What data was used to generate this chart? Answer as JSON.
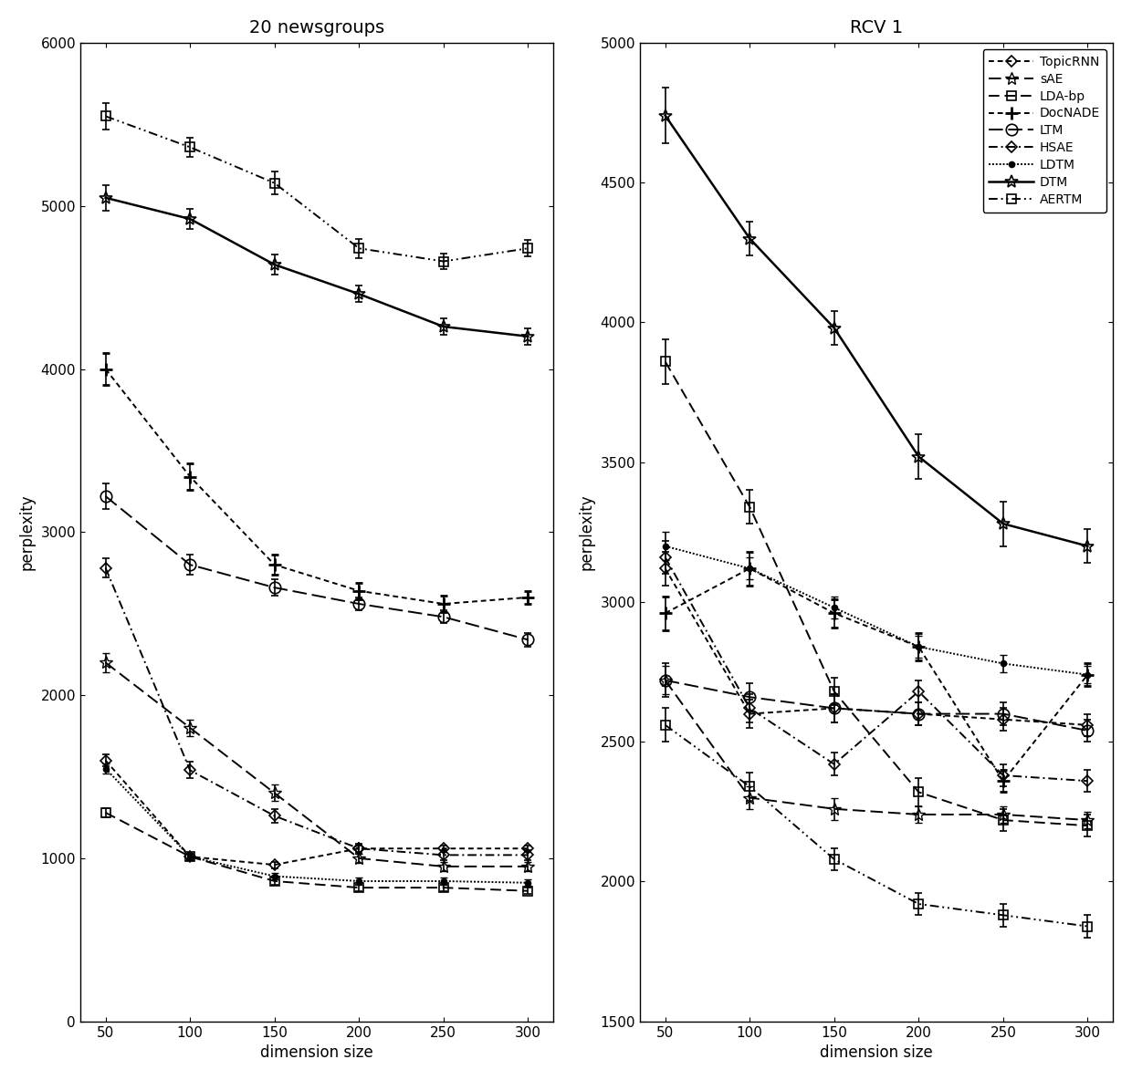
{
  "dims": [
    50,
    100,
    150,
    200,
    250,
    300
  ],
  "left_title": "20 newsgroups",
  "right_title": "RCV 1",
  "xlabel": "dimension size",
  "ylabel": "perplexity",
  "left_ylim": [
    0,
    6000
  ],
  "right_ylim": [
    1500,
    5000
  ],
  "left_yticks": [
    0,
    1000,
    2000,
    3000,
    4000,
    5000,
    6000
  ],
  "right_yticks": [
    1500,
    2000,
    2500,
    3000,
    3500,
    4000,
    4500,
    5000
  ],
  "series": [
    {
      "name": "TopicRNN",
      "left_y": [
        1600,
        1010,
        960,
        1060,
        1060,
        1060
      ],
      "left_err": [
        35,
        20,
        20,
        20,
        20,
        20
      ],
      "right_y": [
        3120,
        2600,
        2620,
        2600,
        2580,
        2560
      ],
      "right_err": [
        60,
        50,
        50,
        40,
        40,
        40
      ]
    },
    {
      "name": "sAE",
      "left_y": [
        2200,
        1800,
        1400,
        1000,
        950,
        950
      ],
      "left_err": [
        60,
        50,
        50,
        30,
        30,
        30
      ],
      "right_y": [
        2720,
        2300,
        2260,
        2240,
        2240,
        2220
      ],
      "right_err": [
        50,
        40,
        40,
        30,
        30,
        30
      ]
    },
    {
      "name": "LDA-bp",
      "left_y": [
        1280,
        1010,
        860,
        820,
        820,
        800
      ],
      "left_err": [
        30,
        20,
        20,
        20,
        20,
        20
      ],
      "right_y": [
        3860,
        3340,
        2680,
        2320,
        2220,
        2200
      ],
      "right_err": [
        80,
        60,
        50,
        50,
        40,
        40
      ]
    },
    {
      "name": "DocNADE",
      "left_y": [
        4000,
        3340,
        2800,
        2640,
        2560,
        2600
      ],
      "left_err": [
        100,
        80,
        60,
        50,
        50,
        40
      ],
      "right_y": [
        2960,
        3120,
        2960,
        2840,
        2360,
        2740
      ],
      "right_err": [
        60,
        60,
        50,
        50,
        40,
        40
      ]
    },
    {
      "name": "LTM",
      "left_y": [
        3220,
        2800,
        2660,
        2560,
        2480,
        2340
      ],
      "left_err": [
        80,
        60,
        50,
        40,
        40,
        40
      ],
      "right_y": [
        2720,
        2660,
        2620,
        2600,
        2600,
        2540
      ],
      "right_err": [
        60,
        50,
        50,
        40,
        40,
        40
      ]
    },
    {
      "name": "HSAE",
      "left_y": [
        2780,
        1540,
        1260,
        1060,
        1020,
        1020
      ],
      "left_err": [
        60,
        50,
        40,
        30,
        30,
        30
      ],
      "right_y": [
        3160,
        2620,
        2420,
        2680,
        2380,
        2360
      ],
      "right_err": [
        60,
        50,
        40,
        40,
        40,
        40
      ]
    },
    {
      "name": "LDTM",
      "left_y": [
        1550,
        1010,
        890,
        860,
        860,
        850
      ],
      "left_err": [
        30,
        20,
        20,
        20,
        20,
        20
      ],
      "right_y": [
        3200,
        3120,
        2980,
        2840,
        2780,
        2740
      ],
      "right_err": [
        50,
        40,
        40,
        40,
        30,
        30
      ]
    },
    {
      "name": "DTM",
      "left_y": [
        5050,
        4920,
        4640,
        4460,
        4260,
        4200
      ],
      "left_err": [
        80,
        60,
        60,
        50,
        50,
        50
      ],
      "right_y": [
        4740,
        4300,
        3980,
        3520,
        3280,
        3200
      ],
      "right_err": [
        100,
        60,
        60,
        80,
        80,
        60
      ]
    },
    {
      "name": "AERTM",
      "left_y": [
        5550,
        5360,
        5140,
        4740,
        4660,
        4740
      ],
      "left_err": [
        80,
        60,
        70,
        60,
        50,
        50
      ],
      "right_y": [
        2560,
        2340,
        2080,
        1920,
        1880,
        1840
      ],
      "right_err": [
        60,
        50,
        40,
        40,
        40,
        40
      ]
    }
  ],
  "legend_order": [
    "TopicRNN",
    "sAE",
    "LDA-bp",
    "DocNADE",
    "LTM",
    "HSAE",
    "LDTM",
    "DTM",
    "AERTM"
  ]
}
